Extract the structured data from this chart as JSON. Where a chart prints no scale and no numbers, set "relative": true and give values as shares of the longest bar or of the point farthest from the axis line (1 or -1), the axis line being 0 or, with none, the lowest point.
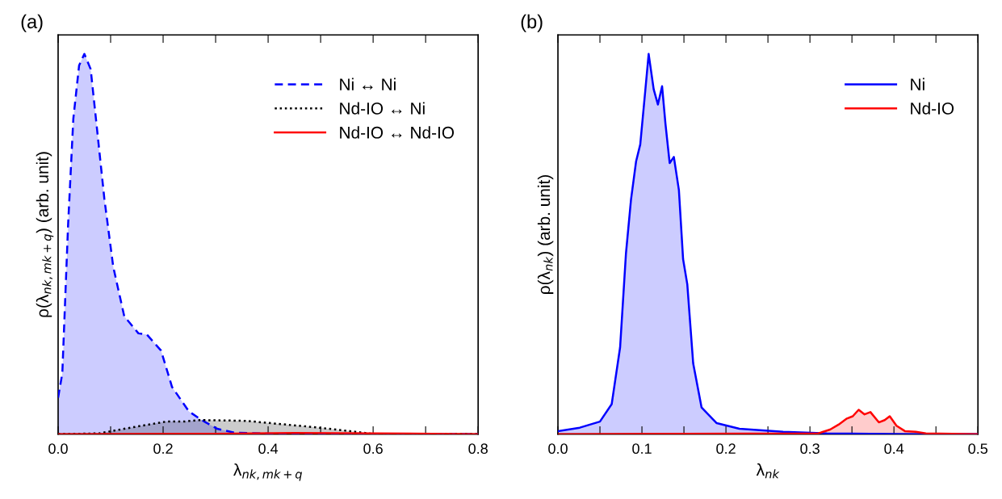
{
  "chart_data": [
    {
      "type": "area",
      "title": "(a)",
      "relative": true,
      "xlabel": "λ$_{nk,mk+q}$",
      "ylabel": "ρ(λ$_{nk,mk+q}$) (arb. unit)",
      "xlim": [
        0,
        0.8
      ],
      "xticks": [
        {
          "value": 0,
          "label": "0.0"
        },
        {
          "value": 0.1,
          "label": null
        },
        0.2,
        {
          "value": 0.3,
          "label": null
        },
        0.4,
        {
          "value": 0.5,
          "label": null
        },
        0.6,
        {
          "value": 0.7,
          "label": null
        },
        0.8
      ],
      "tick_labels": "x",
      "legend": "top right",
      "grid": false,
      "series": [
        {
          "name": "Ni ↔ Ni",
          "color": "#0000ff",
          "line_style": "dashed",
          "x": [
            0,
            0.008,
            0.019,
            0.029,
            0.04,
            0.05,
            0.062,
            0.072,
            0.088,
            0.105,
            0.126,
            0.153,
            0.169,
            0.196,
            0.217,
            0.249,
            0.271,
            0.303,
            0.335,
            0.41,
            0.8
          ],
          "values": [
            0.096,
            0.16,
            0.55,
            0.83,
            0.97,
            1.0,
            0.96,
            0.83,
            0.62,
            0.44,
            0.31,
            0.265,
            0.262,
            0.22,
            0.124,
            0.06,
            0.039,
            0.014,
            0.004,
            0.001,
            0
          ]
        },
        {
          "name": "Nd-IO ↔ Ni",
          "color": "#000000",
          "line_style": "dotted",
          "x": [
            0,
            0.078,
            0.142,
            0.206,
            0.238,
            0.271,
            0.357,
            0.42,
            0.49,
            0.549,
            0.597,
            0.8
          ],
          "values": [
            0,
            0.002,
            0.018,
            0.033,
            0.033,
            0.037,
            0.035,
            0.027,
            0.018,
            0.009,
            0.001,
            0
          ]
        },
        {
          "name": "Nd-IO ↔ Nd-IO",
          "color": "#ff0000",
          "line_style": "solid",
          "x": [
            0,
            0.3,
            0.45,
            0.6,
            0.8
          ],
          "values": [
            0,
            0.001,
            0.003,
            0.002,
            0
          ]
        }
      ]
    },
    {
      "type": "area",
      "title": "(b)",
      "relative": true,
      "xlabel": "λ$_{nk}$",
      "ylabel": "ρ(λ$_{nk}$) (arb. unit)",
      "xlim": [
        0,
        0.5
      ],
      "xticks": [
        {
          "value": 0,
          "label": "0.0"
        },
        {
          "value": 0.05,
          "label": null
        },
        0.1,
        {
          "value": 0.15,
          "label": null
        },
        0.2,
        {
          "value": 0.25,
          "label": null
        },
        0.3,
        {
          "value": 0.35,
          "label": null
        },
        0.4,
        {
          "value": 0.45,
          "label": null
        },
        0.5
      ],
      "tick_labels": "x",
      "legend": "top right",
      "grid": false,
      "series": [
        {
          "name": "Ni",
          "color": "#0000ff",
          "line_style": "solid",
          "x": [
            0,
            0.026,
            0.05,
            0.064,
            0.074,
            0.081,
            0.087,
            0.093,
            0.098,
            0.104,
            0.108,
            0.114,
            0.119,
            0.124,
            0.128,
            0.133,
            0.138,
            0.144,
            0.149,
            0.154,
            0.161,
            0.171,
            0.189,
            0.216,
            0.268,
            0.32,
            0.424,
            0.5
          ],
          "values": [
            0.008,
            0.017,
            0.033,
            0.079,
            0.228,
            0.476,
            0.617,
            0.717,
            0.762,
            0.904,
            1.0,
            0.907,
            0.867,
            0.915,
            0.816,
            0.713,
            0.729,
            0.642,
            0.46,
            0.394,
            0.186,
            0.07,
            0.029,
            0.014,
            0.006,
            0.002,
            0,
            0
          ]
        },
        {
          "name": "Nd-IO",
          "color": "#ff0000",
          "line_style": "solid",
          "x": [
            0,
            0.31,
            0.324,
            0.334,
            0.344,
            0.351,
            0.358,
            0.365,
            0.372,
            0.382,
            0.389,
            0.395,
            0.403,
            0.413,
            0.426,
            0.438,
            0.5
          ],
          "values": [
            0,
            0.002,
            0.012,
            0.025,
            0.041,
            0.047,
            0.064,
            0.052,
            0.058,
            0.031,
            0.037,
            0.047,
            0.022,
            0.008,
            0.006,
            0.002,
            0
          ]
        }
      ]
    }
  ]
}
